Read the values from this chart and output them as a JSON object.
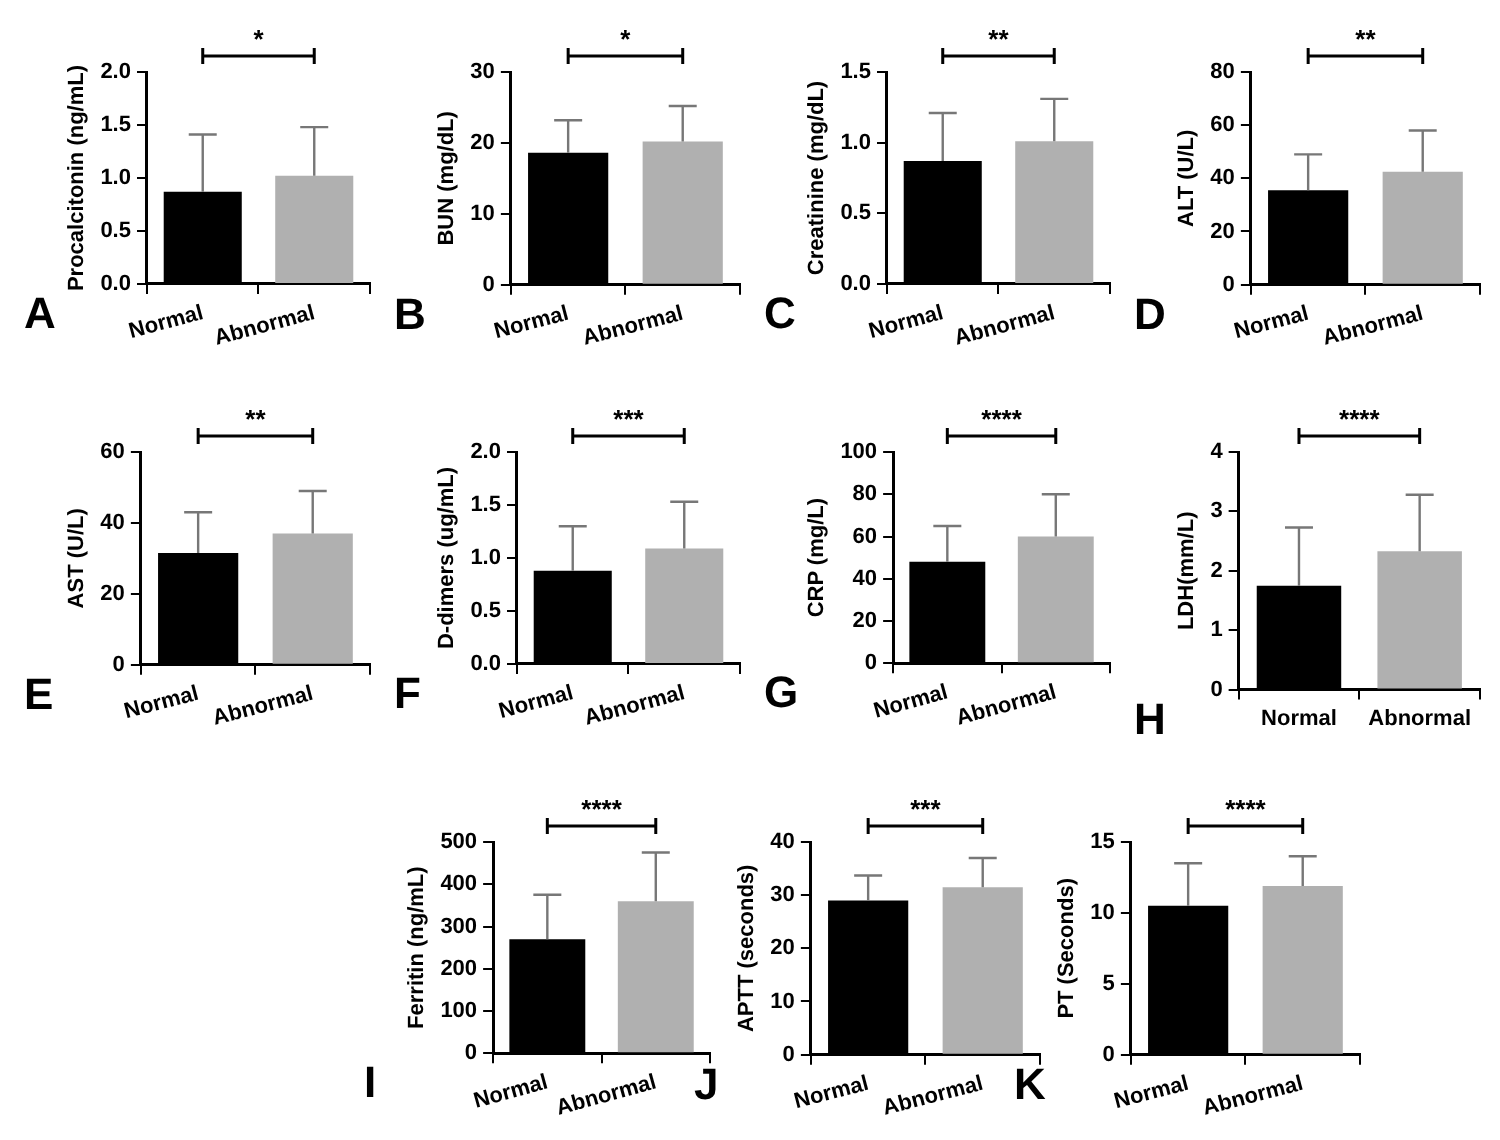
{
  "chart_data": [
    {
      "type": "bar",
      "ylabel": "Procalcitonin (ng/mL)",
      "categories": [
        "Normal",
        "Abnormal"
      ],
      "values": [
        0.87,
        1.02
      ],
      "colors": [
        "#000000",
        "#b0b0b0"
      ],
      "errors": [
        [
          0.87,
          1.41
        ],
        [
          1.02,
          1.48
        ]
      ],
      "ylim": [
        0,
        2
      ],
      "yticks": [
        {
          "value": 0,
          "label": "0.0"
        },
        {
          "value": 0.5,
          "label": "0.5"
        },
        {
          "value": 1,
          "label": "1.0"
        },
        {
          "value": 1.5,
          "label": "1.5"
        },
        {
          "value": 2,
          "label": "2.0"
        }
      ],
      "annotations": [
        "A",
        "*"
      ]
    },
    {
      "type": "bar",
      "ylabel": "BUN (mg/dL)",
      "categories": [
        "Normal",
        "Abnormal"
      ],
      "values": [
        18.6,
        20.2
      ],
      "colors": [
        "#000000",
        "#b0b0b0"
      ],
      "errors": [
        [
          18.6,
          23.2
        ],
        [
          20.2,
          25.2
        ]
      ],
      "ylim": [
        0,
        30
      ],
      "yticks": [
        0,
        10,
        20,
        30
      ],
      "annotations": [
        "B",
        "*"
      ]
    },
    {
      "type": "bar",
      "ylabel": "Creatinine (mg/dL)",
      "categories": [
        "Normal",
        "Abnormal"
      ],
      "values": [
        0.87,
        1.01
      ],
      "colors": [
        "#000000",
        "#b0b0b0"
      ],
      "errors": [
        [
          0.87,
          1.21
        ],
        [
          1.01,
          1.31
        ]
      ],
      "ylim": [
        0,
        1.5
      ],
      "yticks": [
        {
          "value": 0,
          "label": "0.0"
        },
        {
          "value": 0.5,
          "label": "0.5"
        },
        {
          "value": 1,
          "label": "1.0"
        },
        {
          "value": 1.5,
          "label": "1.5"
        }
      ],
      "annotations": [
        "C",
        "**"
      ]
    },
    {
      "type": "bar",
      "ylabel": "ALT (U/L)",
      "categories": [
        "Normal",
        "Abnormal"
      ],
      "values": [
        35.5,
        42.5
      ],
      "colors": [
        "#000000",
        "#b0b0b0"
      ],
      "errors": [
        [
          35.5,
          49
        ],
        [
          42.5,
          58
        ]
      ],
      "ylim": [
        0,
        80
      ],
      "yticks": [
        0,
        20,
        40,
        60,
        80
      ],
      "annotations": [
        "D",
        "**"
      ]
    },
    {
      "type": "bar",
      "ylabel": "AST (U/L)",
      "categories": [
        "Normal",
        "Abnormal"
      ],
      "values": [
        31.5,
        37
      ],
      "colors": [
        "#000000",
        "#b0b0b0"
      ],
      "errors": [
        [
          31.5,
          43
        ],
        [
          37,
          49
        ]
      ],
      "ylim": [
        0,
        60
      ],
      "yticks": [
        0,
        20,
        40,
        60
      ],
      "annotations": [
        "E",
        "**"
      ]
    },
    {
      "type": "bar",
      "ylabel": "D-dimers (ug/mL)",
      "categories": [
        "Normal",
        "Abnormal"
      ],
      "values": [
        0.88,
        1.09
      ],
      "colors": [
        "#000000",
        "#b0b0b0"
      ],
      "errors": [
        [
          0.88,
          1.3
        ],
        [
          1.09,
          1.53
        ]
      ],
      "ylim": [
        0,
        2
      ],
      "yticks": [
        {
          "value": 0,
          "label": "0.0"
        },
        {
          "value": 0.5,
          "label": "0.5"
        },
        {
          "value": 1,
          "label": "1.0"
        },
        {
          "value": 1.5,
          "label": "1.5"
        },
        {
          "value": 2,
          "label": "2.0"
        }
      ],
      "annotations": [
        "F",
        "***"
      ]
    },
    {
      "type": "bar",
      "ylabel": "CRP (mg/L)",
      "categories": [
        "Normal",
        "Abnormal"
      ],
      "values": [
        48,
        60
      ],
      "colors": [
        "#000000",
        "#b0b0b0"
      ],
      "errors": [
        [
          48,
          65
        ],
        [
          60,
          80
        ]
      ],
      "ylim": [
        0,
        100
      ],
      "yticks": [
        0,
        20,
        40,
        60,
        80,
        100
      ],
      "annotations": [
        "G",
        "****"
      ]
    },
    {
      "type": "bar",
      "ylabel": "LDH(mm/L)",
      "categories": [
        "Normal",
        "Abnormal"
      ],
      "values": [
        1.75,
        2.33
      ],
      "colors": [
        "#000000",
        "#b0b0b0"
      ],
      "errors": [
        [
          1.75,
          2.73
        ],
        [
          2.33,
          3.28
        ]
      ],
      "ylim": [
        0,
        4
      ],
      "yticks": [
        0,
        1,
        2,
        3,
        4
      ],
      "annotations": [
        "H",
        "****"
      ]
    },
    {
      "type": "bar",
      "ylabel": "Ferritin (ng/mL)",
      "categories": [
        "Normal",
        "Abnormal"
      ],
      "values": [
        270,
        360
      ],
      "colors": [
        "#000000",
        "#b0b0b0"
      ],
      "errors": [
        [
          270,
          375
        ],
        [
          360,
          475
        ]
      ],
      "ylim": [
        0,
        500
      ],
      "yticks": [
        0,
        100,
        200,
        300,
        400,
        500
      ],
      "annotations": [
        "I",
        "****"
      ]
    },
    {
      "type": "bar",
      "ylabel": "APTT (seconds)",
      "categories": [
        "Normal",
        "Abnormal"
      ],
      "values": [
        29,
        31.5
      ],
      "colors": [
        "#000000",
        "#b0b0b0"
      ],
      "errors": [
        [
          29,
          33.7
        ],
        [
          31.5,
          37
        ]
      ],
      "ylim": [
        0,
        40
      ],
      "yticks": [
        0,
        10,
        20,
        30,
        40
      ],
      "annotations": [
        "J",
        "***"
      ]
    },
    {
      "type": "bar",
      "ylabel": "PT (Seconds)",
      "categories": [
        "Normal",
        "Abnormal"
      ],
      "values": [
        10.5,
        11.9
      ],
      "colors": [
        "#000000",
        "#b0b0b0"
      ],
      "errors": [
        [
          10.5,
          13.5
        ],
        [
          11.9,
          14
        ]
      ],
      "ylim": [
        0,
        15
      ],
      "yticks": [
        0,
        5,
        10,
        15
      ],
      "annotations": [
        "K",
        "****"
      ]
    }
  ]
}
